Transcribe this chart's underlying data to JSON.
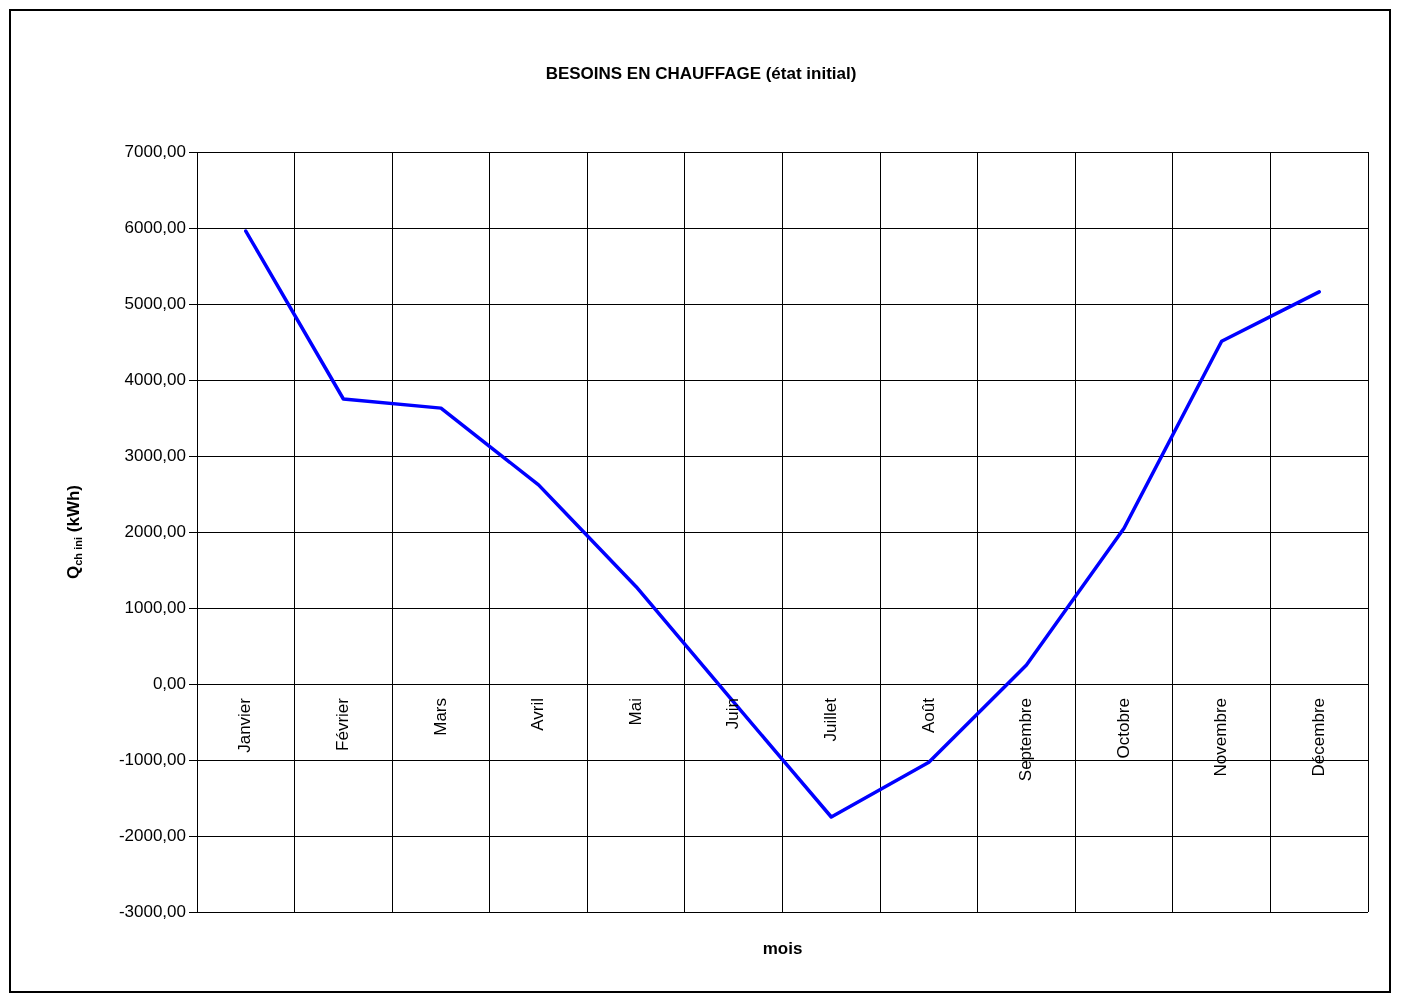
{
  "chart_data": {
    "type": "line",
    "title": "BESOINS EN CHAUFFAGE (état initial)",
    "xlabel": "mois",
    "ylabel": "Q$_{ch ini}$ (kWh)",
    "categories": [
      "Janvier",
      "Février",
      "Mars",
      "Avril",
      "Mai",
      "Juin",
      "Juillet",
      "Août",
      "Septembre",
      "Octobre",
      "Novembre",
      "Décembre"
    ],
    "series": [
      {
        "color": "#0000ff",
        "values": [
          5960,
          3750,
          3630,
          2620,
          1280,
          -240,
          -1750,
          -1030,
          250,
          2050,
          4510,
          5160
        ]
      }
    ],
    "ylim": [
      -3000,
      7000
    ],
    "yticks": [
      {
        "value": -3000,
        "label": "-3000,00"
      },
      {
        "value": -2000,
        "label": "-2000,00"
      },
      {
        "value": -1000,
        "label": "-1000,00"
      },
      {
        "value": 0,
        "label": "0,00"
      },
      {
        "value": 1000,
        "label": "1000,00"
      },
      {
        "value": 2000,
        "label": "2000,00"
      },
      {
        "value": 3000,
        "label": "3000,00"
      },
      {
        "value": 4000,
        "label": "4000,00"
      },
      {
        "value": 5000,
        "label": "5000,00"
      },
      {
        "value": 6000,
        "label": "6000,00"
      },
      {
        "value": 7000,
        "label": "7000,00"
      }
    ],
    "grid": true,
    "legend": false,
    "marker": "none",
    "line_style": "solid"
  }
}
